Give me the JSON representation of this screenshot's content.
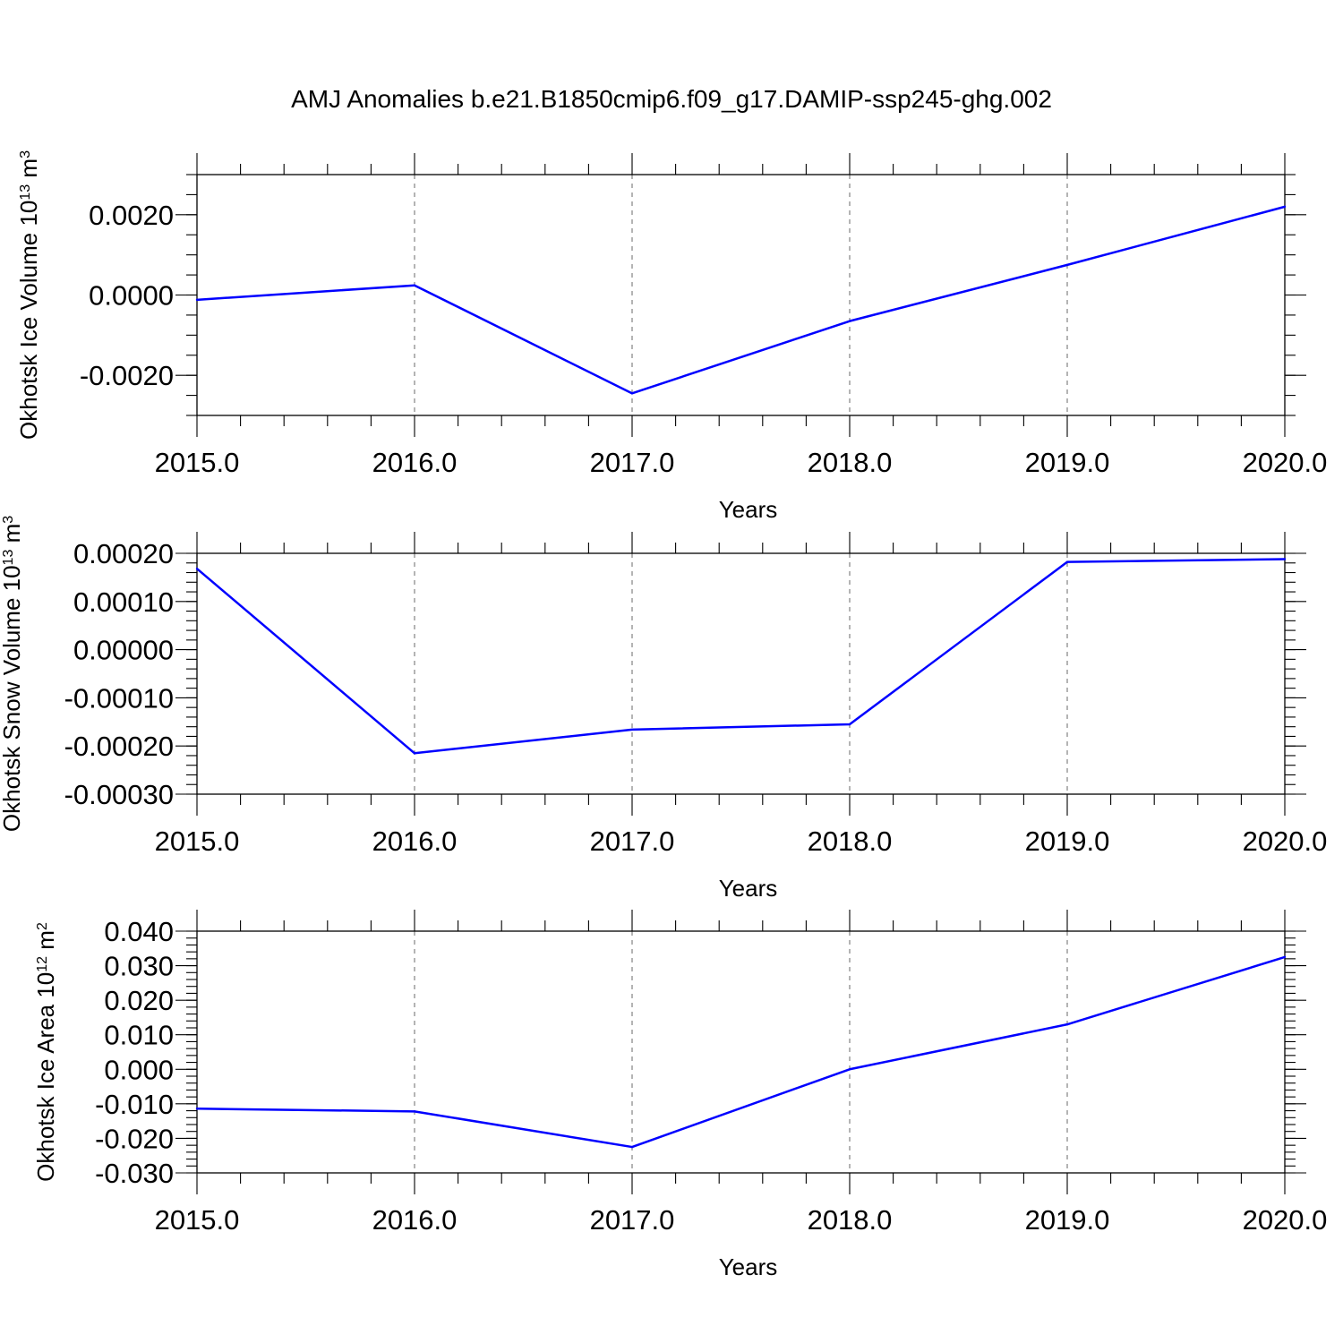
{
  "figure": {
    "title": "AMJ Anomalies b.e21.B1850cmip6.f09_g17.DAMIP-ssp245-ghg.002",
    "line_color": "#0000ff"
  },
  "chart_data": [
    {
      "type": "line",
      "xlabel": "Years",
      "ylabel": "Okhotsk Ice Volume 10",
      "ylabel_exp": "13",
      "ylabel_unit": "m",
      "ylabel_unit_exp": "3",
      "x": [
        2015,
        2016,
        2017,
        2018,
        2019,
        2020
      ],
      "values": [
        -0.00012,
        0.00024,
        -0.00245,
        -0.00065,
        0.00075,
        0.0022
      ],
      "xlim": [
        2015,
        2020
      ],
      "ylim": [
        -0.003,
        0.003
      ],
      "xticks": [
        2015,
        2016,
        2017,
        2018,
        2019,
        2020
      ],
      "xtick_labels": [
        "2015.0",
        "2016.0",
        "2017.0",
        "2018.0",
        "2019.0",
        "2020.0"
      ],
      "yticks": [
        -0.002,
        0.0,
        0.002
      ],
      "ytick_labels": [
        "-0.0020",
        "0.0000",
        "0.0020"
      ],
      "yminor_step": 0.0005,
      "grid": "vertical dashed at major x ticks"
    },
    {
      "type": "line",
      "xlabel": "Years",
      "ylabel": "Okhotsk Snow Volume 10",
      "ylabel_exp": "13",
      "ylabel_unit": "m",
      "ylabel_unit_exp": "3",
      "x": [
        2015,
        2016,
        2017,
        2018,
        2019,
        2020
      ],
      "values": [
        0.000168,
        -0.000215,
        -0.000166,
        -0.000155,
        0.000182,
        0.000188
      ],
      "xlim": [
        2015,
        2020
      ],
      "ylim": [
        -0.0003,
        0.0002
      ],
      "xticks": [
        2015,
        2016,
        2017,
        2018,
        2019,
        2020
      ],
      "xtick_labels": [
        "2015.0",
        "2016.0",
        "2017.0",
        "2018.0",
        "2019.0",
        "2020.0"
      ],
      "yticks": [
        -0.0003,
        -0.0002,
        -0.0001,
        0.0,
        0.0001,
        0.0002
      ],
      "ytick_labels": [
        "-0.00030",
        "-0.00020",
        "-0.00010",
        "0.00000",
        "0.00010",
        "0.00020"
      ],
      "yminor_step": 2e-05,
      "grid": "vertical dashed at major x ticks"
    },
    {
      "type": "line",
      "xlabel": "Years",
      "ylabel": "Okhotsk Ice Area 10",
      "ylabel_exp": "12",
      "ylabel_unit": "m",
      "ylabel_unit_exp": "2",
      "x": [
        2015,
        2016,
        2017,
        2018,
        2019,
        2020
      ],
      "values": [
        -0.0114,
        -0.0122,
        -0.0225,
        0.0,
        0.013,
        0.0325
      ],
      "xlim": [
        2015,
        2020
      ],
      "ylim": [
        -0.03,
        0.04
      ],
      "xticks": [
        2015,
        2016,
        2017,
        2018,
        2019,
        2020
      ],
      "xtick_labels": [
        "2015.0",
        "2016.0",
        "2017.0",
        "2018.0",
        "2019.0",
        "2020.0"
      ],
      "yticks": [
        -0.03,
        -0.02,
        -0.01,
        0.0,
        0.01,
        0.02,
        0.03,
        0.04
      ],
      "ytick_labels": [
        "-0.030",
        "-0.020",
        "-0.010",
        "0.000",
        "0.010",
        "0.020",
        "0.030",
        "0.040"
      ],
      "yminor_step": 0.002,
      "grid": "vertical dashed at major x ticks"
    }
  ]
}
